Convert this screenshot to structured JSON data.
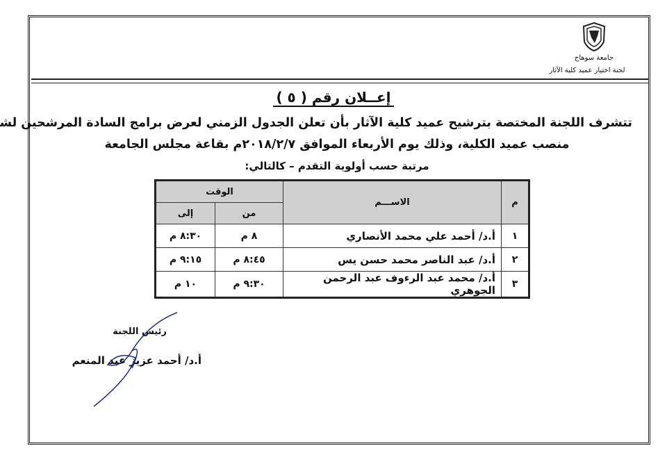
{
  "header": {
    "university": "جامعة سوهاج",
    "committee": "لجنة اختيار عميد كلية الآثار",
    "logo_icon": "university-seal"
  },
  "title": "إعــلان رقم ( ٥ )",
  "paragraph": [
    "تتشرف اللجنة المختصة بترشيح عميد كلية الآثار بأن تعلن الجدول الزمني لعرض برامج السادة المرشحين لشغل",
    "منصب عميد الكلية، وذلك يوم الأربعاء الموافق ٢٠١٨/٢/٧م بقاعة مجلس الجامعة",
    "مرتبة حسب أولوية التقدم – كالتالي:"
  ],
  "table": {
    "headers": {
      "num": "م",
      "name": "الاســـم",
      "time": "الوقت",
      "from": "من",
      "to": "إلى"
    },
    "rows": [
      {
        "num": "١",
        "name": "أ.د/ أحمد علي محمد الأنصاري",
        "from": "٨ م",
        "to": "٨:٣٠ م"
      },
      {
        "num": "٢",
        "name": "أ.د/ عبد الناصر محمد حسن يس",
        "from": "٨:٤٥ م",
        "to": "٩:١٥ م"
      },
      {
        "num": "٣",
        "name": "أ.د/ محمد عبد الرءوف عبد الرحمن الجوهري",
        "from": "٩:٣٠ م",
        "to": "١٠ م"
      }
    ]
  },
  "signature": {
    "role": "رئيس اللجنة",
    "name": "أ.د/ أحمد عزيز عبد المنعم"
  }
}
